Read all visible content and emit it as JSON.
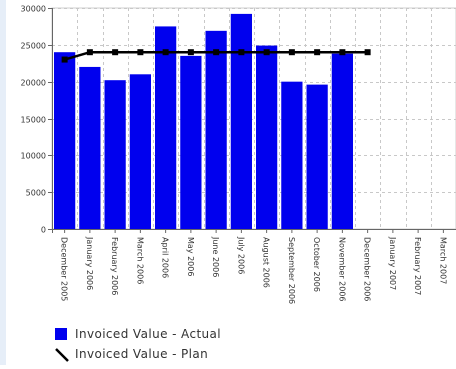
{
  "chart_data": {
    "type": "bar",
    "categories": [
      "December 2005",
      "January 2006",
      "February 2006",
      "March 2006",
      "April 2006",
      "May 2006",
      "June 2006",
      "July 2006",
      "August 2006",
      "September 2006",
      "October 2006",
      "November 2006",
      "December 2006",
      "January 2007",
      "February 2007",
      "March 2007"
    ],
    "series": [
      {
        "name": "Invoiced Value - Actual",
        "kind": "bar",
        "color": "#0000ee",
        "values": [
          24000,
          22000,
          20200,
          21000,
          27500,
          23500,
          26900,
          29200,
          24900,
          20000,
          19600,
          23800,
          null,
          null,
          null,
          null
        ]
      },
      {
        "name": "Invoiced Value - Plan",
        "kind": "line",
        "color": "#000000",
        "values": [
          23000,
          24000,
          24000,
          24000,
          24000,
          24000,
          24000,
          24000,
          24000,
          24000,
          24000,
          24000,
          24000,
          null,
          null,
          null
        ]
      }
    ],
    "y_ticks": [
      "0",
      "5000",
      "10000",
      "15000",
      "20000",
      "25000",
      "30000"
    ],
    "ylim": [
      0,
      30000
    ],
    "grid": true,
    "legend": "bottom-left",
    "title": "",
    "xlabel": "",
    "ylabel": ""
  }
}
